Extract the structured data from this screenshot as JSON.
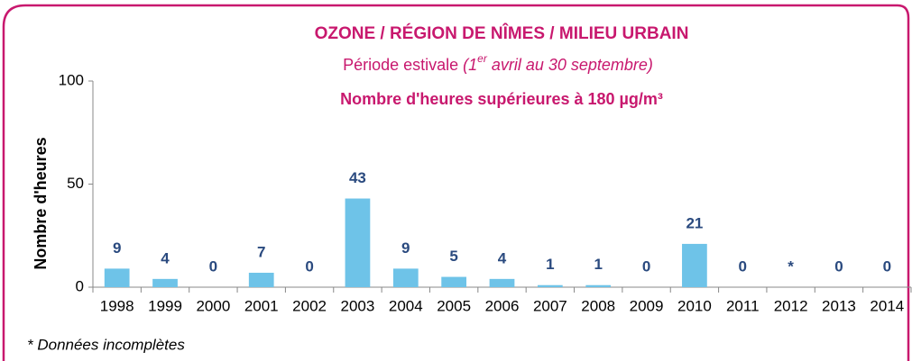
{
  "chart_data": {
    "type": "bar",
    "title": "OZONE / RÉGION DE NÎMES / MILIEU URBAIN",
    "subtitle": [
      "Période estivale ",
      "(1",
      "er",
      " avril au 30 septembre)"
    ],
    "subtitle2": "Nombre d'heures supérieures à 180 µg/m³",
    "y_label": "Nombre d'heures",
    "footnote": "* Données incomplètes",
    "categories": [
      "1998",
      "1999",
      "2000",
      "2001",
      "2002",
      "2003",
      "2004",
      "2005",
      "2006",
      "2007",
      "2008",
      "2009",
      "2010",
      "2011",
      "2012",
      "2013",
      "2014"
    ],
    "values": [
      9,
      4,
      0,
      7,
      0,
      43,
      9,
      5,
      4,
      1,
      1,
      0,
      21,
      0,
      null,
      0,
      0
    ],
    "value_labels": [
      "9",
      "4",
      "0",
      "7",
      "0",
      "43",
      "9",
      "5",
      "4",
      "1",
      "1",
      "0",
      "21",
      "0",
      "*",
      "0",
      "0"
    ],
    "color": "#6ec3e8",
    "ylim": [
      0,
      100
    ],
    "yticks": [
      0,
      50,
      100
    ],
    "grid": false
  }
}
